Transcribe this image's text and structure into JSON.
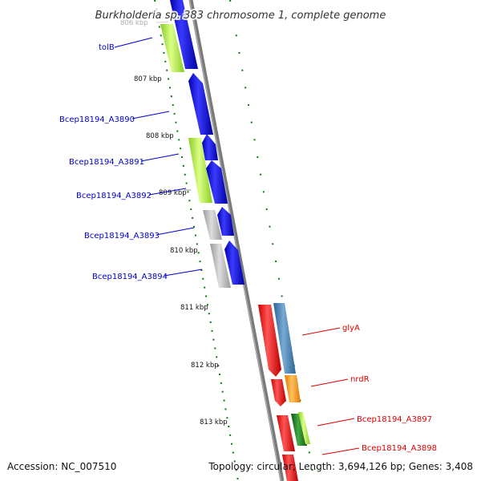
{
  "title": "Burkholderia sp. 383 chromosome 1, complete genome",
  "footer": {
    "accession": "Accession: NC_007510",
    "summary": "Topology: circular; Length: 3,694,126 bp; Genes: 3,408"
  },
  "colors": {
    "backbone": "#888888",
    "tick": "#117711",
    "label_left": "#0000cc",
    "label_right": "#dd0000",
    "blue": "#1414e6",
    "lime": "#aaee33",
    "gray": "#b4b4b4",
    "red": "#ee1111",
    "steelblue": "#4a84b4",
    "orange": "#ff9900",
    "green": "#228822"
  },
  "kbp_markers": [
    {
      "text": "806 kbp",
      "faded": true
    },
    {
      "text": "807 kbp",
      "faded": false
    },
    {
      "text": "808 kbp",
      "faded": false
    },
    {
      "text": "809 kbp",
      "faded": false
    },
    {
      "text": "810 kbp",
      "faded": false
    },
    {
      "text": "811 kbp",
      "faded": false
    },
    {
      "text": "812 kbp",
      "faded": false
    },
    {
      "text": "813 kbp",
      "faded": false
    }
  ],
  "gene_labels_left": [
    "tolB",
    "Bcep18194_A3890",
    "Bcep18194_A3891",
    "Bcep18194_A3892",
    "Bcep18194_A3893",
    "Bcep18194_A3894"
  ],
  "gene_labels_right": [
    "glyA",
    "nrdR",
    "Bcep18194_A3897",
    "Bcep18194_A3898"
  ]
}
